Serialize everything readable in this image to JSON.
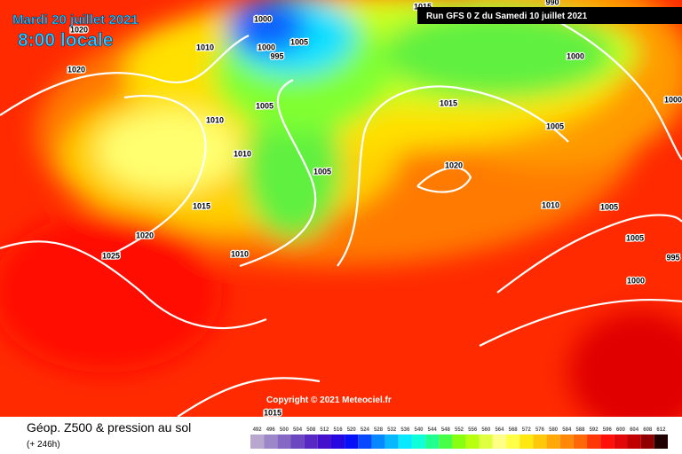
{
  "header": {
    "date": "Mardi 20 juillet 2021",
    "time": "8:00 locale",
    "run": "Run GFS 0 Z du Samedi 10 juillet 2021"
  },
  "copyright": "Copyright © 2021 Meteociel.fr",
  "footer": {
    "title": "Géop. Z500 & pression au sol",
    "lead": "(+ 246h)"
  },
  "isobars": {
    "labels": [
      1020,
      1010,
      1000,
      1000,
      1005,
      995,
      1015,
      990,
      1000,
      1020,
      1010,
      1005,
      1015,
      1005,
      1000,
      1010,
      1005,
      1020,
      1015,
      1010,
      1005,
      1020,
      1010,
      1025,
      1005,
      995,
      1000,
      1015
    ]
  },
  "legend": {
    "values": [
      492,
      496,
      500,
      504,
      508,
      512,
      516,
      520,
      524,
      528,
      532,
      536,
      540,
      544,
      548,
      552,
      556,
      560,
      564,
      568,
      572,
      576,
      580,
      584,
      588,
      592,
      596,
      600,
      604,
      608,
      612
    ],
    "colors": [
      "#b8a8d0",
      "#9c88c8",
      "#8468c4",
      "#6c48c0",
      "#5828c4",
      "#4410cc",
      "#2808e0",
      "#0810f8",
      "#0848ff",
      "#0888ff",
      "#08b8ff",
      "#08e8ff",
      "#10ffd8",
      "#20ff90",
      "#48ff48",
      "#88ff10",
      "#b8ff10",
      "#e0ff40",
      "#ffff88",
      "#ffff48",
      "#ffe810",
      "#ffc808",
      "#ffa808",
      "#ff8808",
      "#ff6808",
      "#ff3808",
      "#ff1008",
      "#e00808",
      "#c00000",
      "#900000",
      "#200000"
    ]
  }
}
